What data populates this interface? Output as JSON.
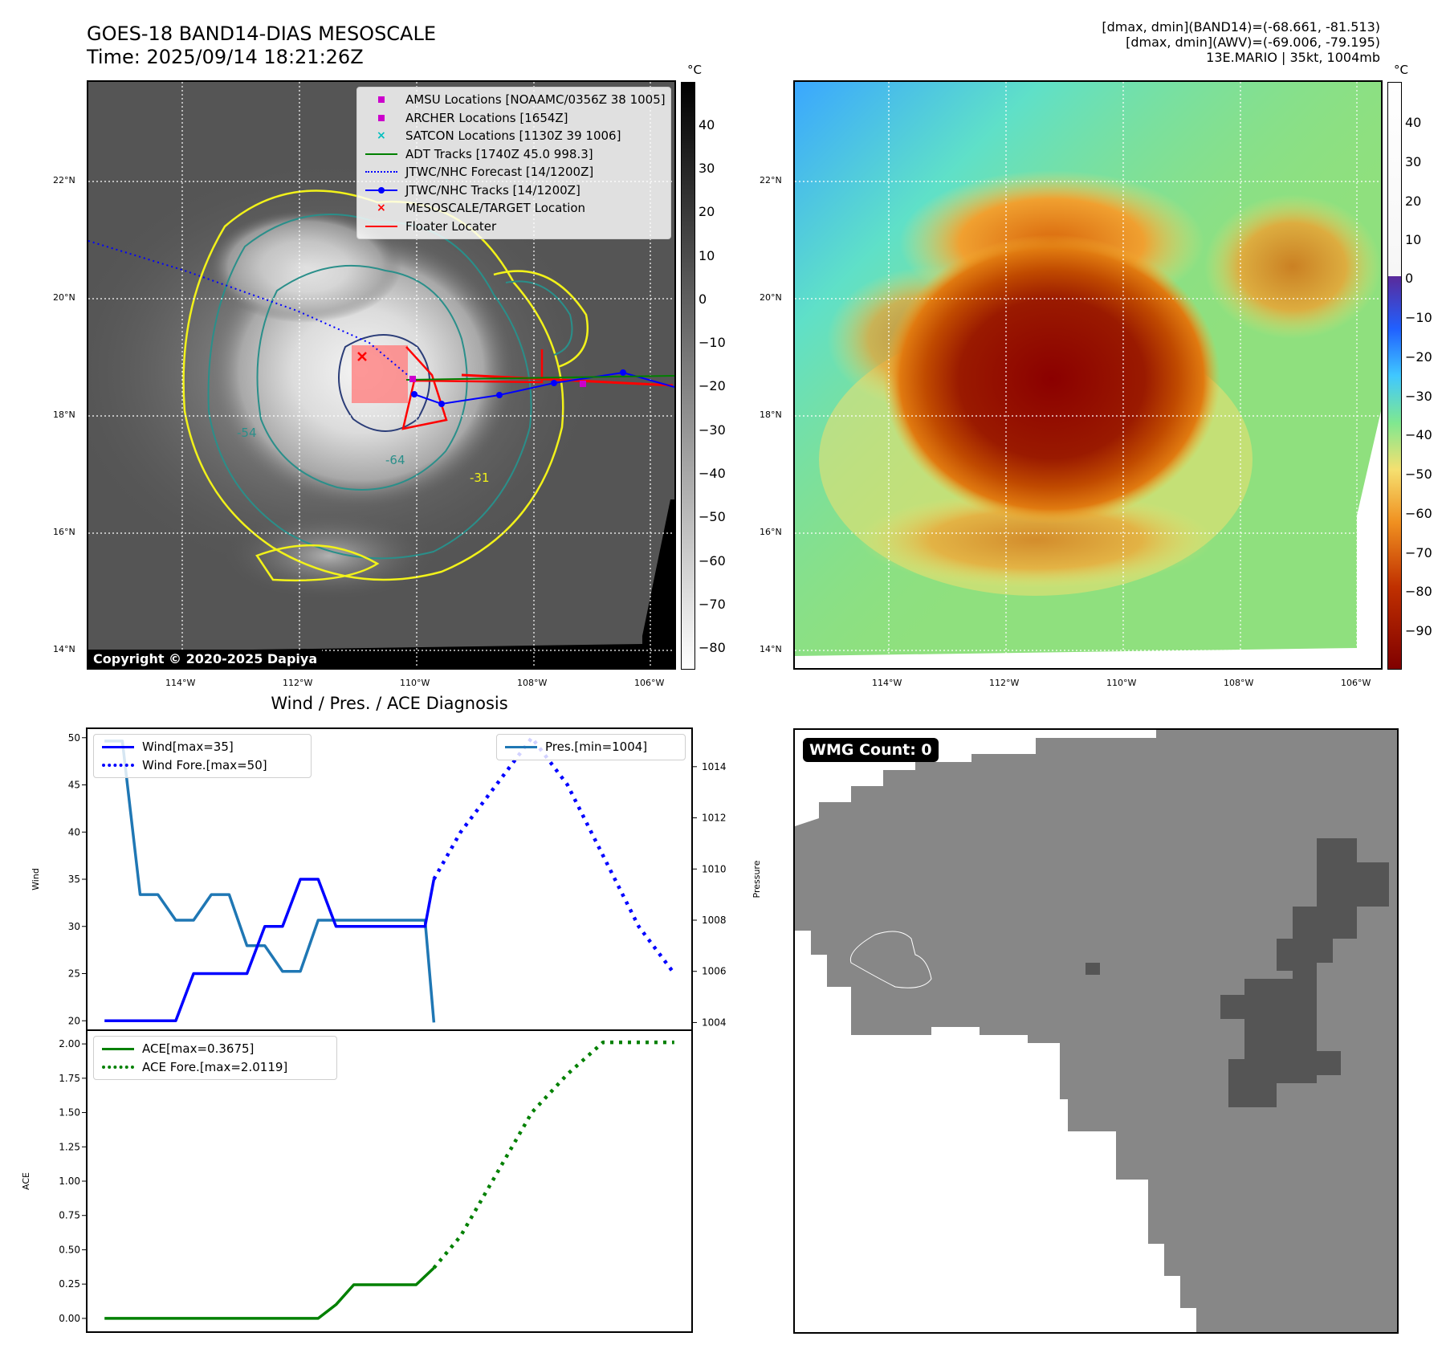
{
  "header": {
    "title_line1": "GOES-18 BAND14-DIAS MESOSCALE",
    "title_line2": "Time: 2025/09/14 18:21:26Z",
    "info_line1": "[dmax, dmin](BAND14)=(-68.661, -81.513)",
    "info_line2": "[dmax, dmin](AWV)=(-69.006, -79.195)",
    "info_line3": "13E.MARIO | 35kt, 1004mb"
  },
  "colors": {
    "wind": "#0000ff",
    "pressure": "#1f77b4",
    "ace": "#008000",
    "floater": "#ff0000",
    "adt": "#008000",
    "amsu": "#cc00cc",
    "satcon": "#00bfbf",
    "contour_yellow": "#f2f21a",
    "contour_teal": "#2a8f8a",
    "contour_navy": "#2b3d78"
  },
  "map": {
    "lat_labels": [
      "22°N",
      "20°N",
      "18°N",
      "16°N",
      "14°N"
    ],
    "lon_labels": [
      "114°W",
      "112°W",
      "110°W",
      "108°W",
      "106°W"
    ],
    "contour_labels": [
      "-54",
      "-64",
      "-31"
    ],
    "legend": [
      {
        "icon": "square-magenta",
        "label": "AMSU Locations [NOAAMC/0356Z 38 1005]"
      },
      {
        "icon": "square-magenta",
        "label": "ARCHER Locations [1654Z]"
      },
      {
        "icon": "x-cyan",
        "label": "SATCON Locations [1130Z 39 1006]"
      },
      {
        "icon": "line-green",
        "label": "ADT Tracks [1740Z 45.0 998.3]"
      },
      {
        "icon": "dotted-blue",
        "label": "JTWC/NHC Forecast [14/1200Z]"
      },
      {
        "icon": "line-dot-blue",
        "label": "JTWC/NHC Tracks [14/1200Z]"
      },
      {
        "icon": "x-red",
        "label": "MESOSCALE/TARGET Location"
      },
      {
        "icon": "line-red",
        "label": "Floater Locater"
      }
    ],
    "copyright": "Copyright © 2020-2025 Dapiya"
  },
  "colorbar_gray": {
    "unit": "°C",
    "ticks": [
      "40",
      "30",
      "20",
      "10",
      "0",
      "−10",
      "−20",
      "−30",
      "−40",
      "−50",
      "−60",
      "−70",
      "−80"
    ]
  },
  "colorbar_color": {
    "unit": "°C",
    "ticks": [
      "40",
      "30",
      "20",
      "10",
      "0",
      "−10",
      "−20",
      "−30",
      "−40",
      "−50",
      "−60",
      "−70",
      "−80",
      "−90"
    ]
  },
  "wmg": {
    "badge": "WMG Count: 0"
  },
  "chart_data": [
    {
      "type": "line",
      "title": "Wind / Pres. / ACE Diagnosis",
      "ylabel": "Wind",
      "y2label": "Pressure",
      "ylim": [
        19,
        51
      ],
      "y2lim": [
        1003.7,
        1015.5
      ],
      "yticks": [
        "50",
        "45",
        "40",
        "35",
        "30",
        "25",
        "20"
      ],
      "y2ticks": [
        "1014",
        "1012",
        "1010",
        "1008",
        "1006",
        "1004"
      ],
      "legend_left": [
        "Wind[max=35]",
        "Wind Fore.[max=50]"
      ],
      "legend_right": [
        "Pres.[min=1004]"
      ],
      "series": [
        {
          "name": "Wind[max=35]",
          "axis": "left",
          "style": "solid",
          "x": [
            0,
            1,
            2,
            3,
            4,
            5,
            6,
            7,
            8,
            9,
            10,
            11,
            12,
            13
          ],
          "values": [
            20,
            20,
            20,
            20,
            20,
            25,
            25,
            25,
            25,
            30,
            30,
            35,
            35,
            30
          ]
        },
        {
          "name": "Wind Fore.[max=50]",
          "axis": "left",
          "style": "dotted",
          "x": [
            18.5,
            20,
            22,
            24,
            26,
            28,
            30,
            32
          ],
          "values": [
            35,
            40,
            45,
            50,
            45,
            37.5,
            30,
            25
          ]
        },
        {
          "name": "Pres.[min=1004]",
          "axis": "right",
          "style": "solid",
          "x": [
            0,
            1,
            2,
            3,
            4,
            5,
            6,
            7,
            8,
            9,
            10,
            11,
            12,
            13,
            14,
            15,
            16,
            17,
            18,
            18.5
          ],
          "values": [
            1015,
            1015,
            1009,
            1009,
            1008,
            1008,
            1009,
            1009,
            1007,
            1007,
            1006,
            1006,
            1008,
            1008,
            1008,
            1008,
            1008,
            1008,
            1008,
            1004
          ]
        }
      ],
      "wind_tail": {
        "x": [
          13,
          14,
          15,
          16,
          17,
          18,
          18.5
        ],
        "values": [
          30,
          30,
          30,
          30,
          30,
          30,
          35
        ]
      }
    },
    {
      "type": "line",
      "ylabel": "ACE",
      "ylim": [
        -0.1,
        2.1
      ],
      "yticks": [
        "2.00",
        "1.75",
        "1.50",
        "1.25",
        "1.00",
        "0.75",
        "0.50",
        "0.25",
        "0.00"
      ],
      "legend": [
        "ACE[max=0.3675]",
        "ACE Fore.[max=2.0119]"
      ],
      "series": [
        {
          "name": "ACE[max=0.3675]",
          "style": "solid",
          "x": [
            0,
            2,
            4,
            6,
            8,
            10,
            12,
            13,
            14,
            16,
            17.5,
            18.5
          ],
          "values": [
            0,
            0,
            0,
            0,
            0,
            0,
            0,
            0.1,
            0.245,
            0.245,
            0.245,
            0.3675
          ]
        },
        {
          "name": "ACE Fore.[max=2.0119]",
          "style": "dotted",
          "x": [
            18.5,
            20,
            22,
            24,
            26,
            28,
            30,
            32
          ],
          "values": [
            0.3675,
            0.6,
            1.05,
            1.5,
            1.78,
            2.0119,
            2.0119,
            2.0119
          ]
        }
      ]
    }
  ]
}
